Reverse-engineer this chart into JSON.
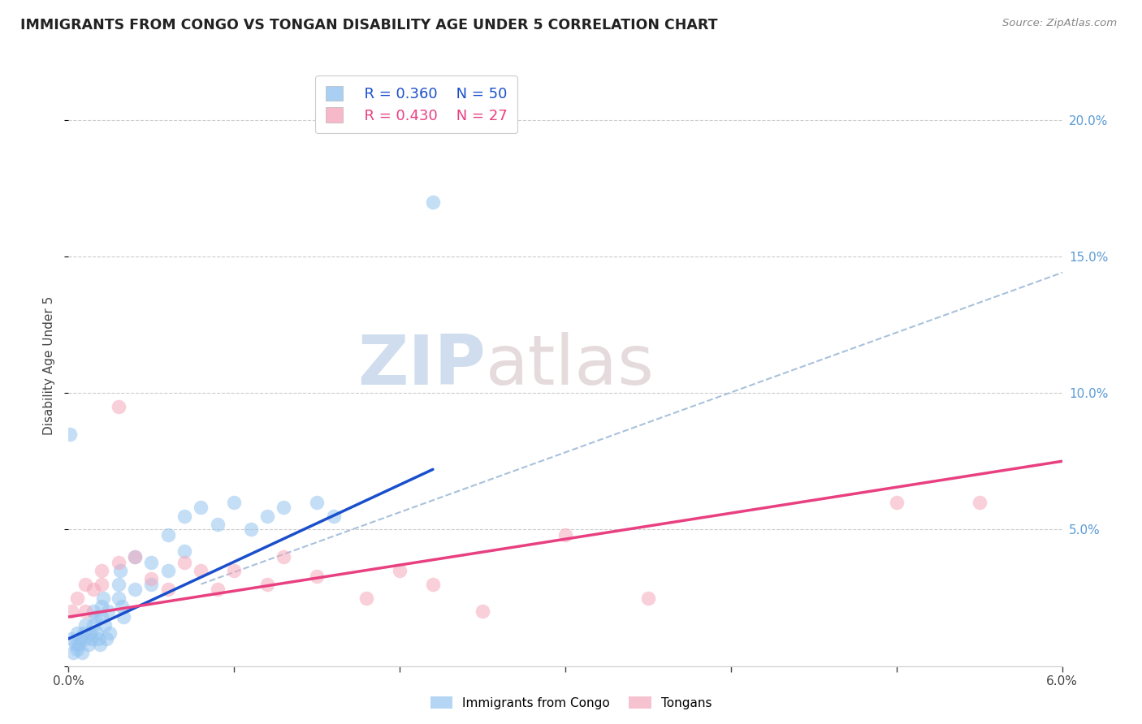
{
  "title": "IMMIGRANTS FROM CONGO VS TONGAN DISABILITY AGE UNDER 5 CORRELATION CHART",
  "source": "Source: ZipAtlas.com",
  "ylabel": "Disability Age Under 5",
  "xlim": [
    0.0,
    0.06
  ],
  "ylim": [
    0.0,
    0.22
  ],
  "yticks": [
    0.0,
    0.05,
    0.1,
    0.15,
    0.2
  ],
  "ytick_labels": [
    "",
    "5.0%",
    "10.0%",
    "15.0%",
    "20.0%"
  ],
  "xticks": [
    0.0,
    0.01,
    0.02,
    0.03,
    0.04,
    0.05,
    0.06
  ],
  "xtick_labels": [
    "0.0%",
    "",
    "",
    "",
    "",
    "",
    "6.0%"
  ],
  "legend_label1": "Immigrants from Congo",
  "legend_label2": "Tongans",
  "legend_r1": "R = 0.360",
  "legend_n1": "N = 50",
  "legend_r2": "R = 0.430",
  "legend_n2": "N = 27",
  "color_blue": "#94C4F0",
  "color_pink": "#F5A8BC",
  "line_color_blue": "#1A4FCC",
  "line_color_pink": "#E84080",
  "line_color_dashed": "#A0BBD8",
  "watermark_zip": "ZIP",
  "watermark_atlas": "atlas",
  "congo_x": [
    0.0002,
    0.0003,
    0.0004,
    0.0005,
    0.0005,
    0.0006,
    0.0007,
    0.0008,
    0.0009,
    0.001,
    0.001,
    0.0012,
    0.0013,
    0.0014,
    0.0015,
    0.0015,
    0.0016,
    0.0017,
    0.0018,
    0.0019,
    0.002,
    0.002,
    0.0021,
    0.0022,
    0.0023,
    0.0024,
    0.0025,
    0.003,
    0.003,
    0.0031,
    0.0032,
    0.0033,
    0.004,
    0.004,
    0.005,
    0.005,
    0.006,
    0.006,
    0.007,
    0.007,
    0.008,
    0.009,
    0.01,
    0.011,
    0.012,
    0.013,
    0.015,
    0.016,
    0.022,
    0.0001
  ],
  "congo_y": [
    0.01,
    0.005,
    0.008,
    0.012,
    0.006,
    0.008,
    0.01,
    0.005,
    0.012,
    0.015,
    0.01,
    0.008,
    0.012,
    0.01,
    0.02,
    0.015,
    0.018,
    0.012,
    0.01,
    0.008,
    0.022,
    0.018,
    0.025,
    0.015,
    0.01,
    0.02,
    0.012,
    0.03,
    0.025,
    0.035,
    0.022,
    0.018,
    0.04,
    0.028,
    0.038,
    0.03,
    0.048,
    0.035,
    0.055,
    0.042,
    0.058,
    0.052,
    0.06,
    0.05,
    0.055,
    0.058,
    0.06,
    0.055,
    0.17,
    0.085
  ],
  "tongan_x": [
    0.0002,
    0.0005,
    0.001,
    0.001,
    0.0015,
    0.002,
    0.002,
    0.003,
    0.003,
    0.004,
    0.005,
    0.006,
    0.007,
    0.008,
    0.009,
    0.01,
    0.012,
    0.013,
    0.015,
    0.018,
    0.02,
    0.022,
    0.025,
    0.03,
    0.035,
    0.05,
    0.055
  ],
  "tongan_y": [
    0.02,
    0.025,
    0.03,
    0.02,
    0.028,
    0.035,
    0.03,
    0.038,
    0.095,
    0.04,
    0.032,
    0.028,
    0.038,
    0.035,
    0.028,
    0.035,
    0.03,
    0.04,
    0.033,
    0.025,
    0.035,
    0.03,
    0.02,
    0.048,
    0.025,
    0.06,
    0.06
  ],
  "blue_line_x": [
    0.0,
    0.022
  ],
  "blue_line_y": [
    0.01,
    0.072
  ],
  "pink_line_x": [
    0.0,
    0.06
  ],
  "pink_line_y": [
    0.018,
    0.075
  ],
  "dashed_line_x": [
    0.008,
    0.065
  ],
  "dashed_line_y": [
    0.03,
    0.155
  ]
}
